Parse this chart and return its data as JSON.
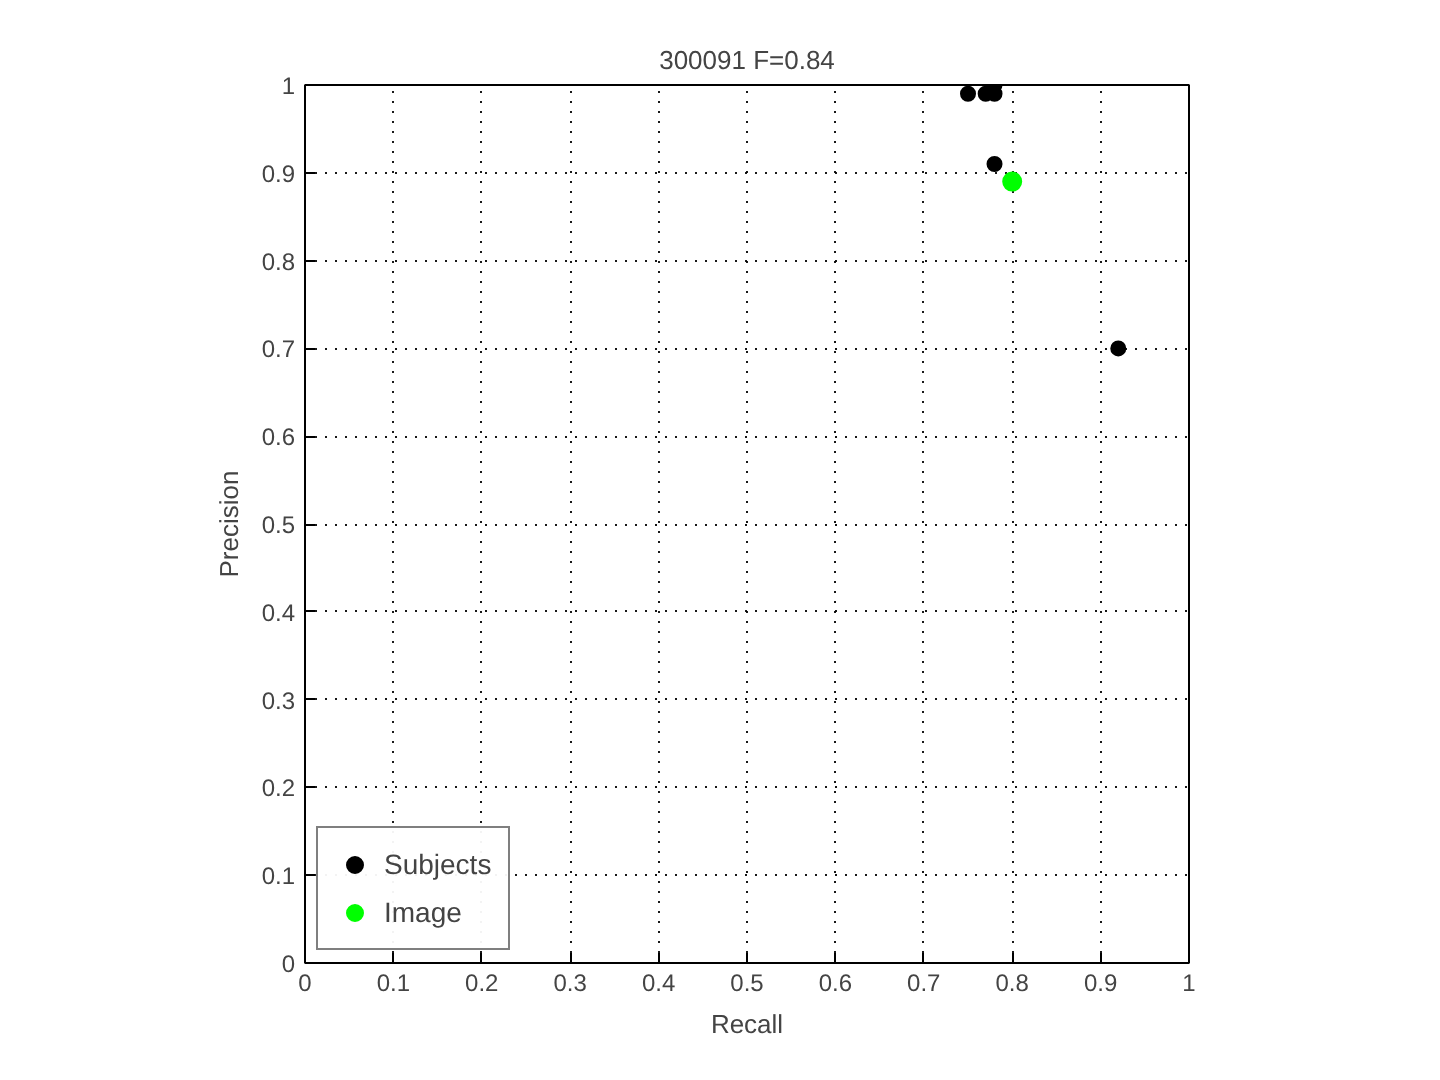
{
  "chart_data": {
    "type": "scatter",
    "title": "300091 F=0.84",
    "xlabel": "Recall",
    "ylabel": "Precision",
    "xlim": [
      0,
      1
    ],
    "ylim": [
      0,
      1
    ],
    "xticks": [
      0,
      0.1,
      0.2,
      0.3,
      0.4,
      0.5,
      0.6,
      0.7,
      0.8,
      0.9,
      1
    ],
    "yticks": [
      0,
      0.1,
      0.2,
      0.3,
      0.4,
      0.5,
      0.6,
      0.7,
      0.8,
      0.9,
      1
    ],
    "grid": true,
    "legend": "bottom left",
    "marker": "circle",
    "series": [
      {
        "name": "Subjects",
        "color": "#000000",
        "x": [
          0.75,
          0.77,
          0.78,
          0.78,
          0.78,
          0.92
        ],
        "values": [
          0.99,
          0.99,
          0.99,
          1.0,
          0.91,
          0.7
        ]
      },
      {
        "name": "Image",
        "color": "#00ff00",
        "x": [
          0.8
        ],
        "values": [
          0.89
        ]
      }
    ]
  }
}
